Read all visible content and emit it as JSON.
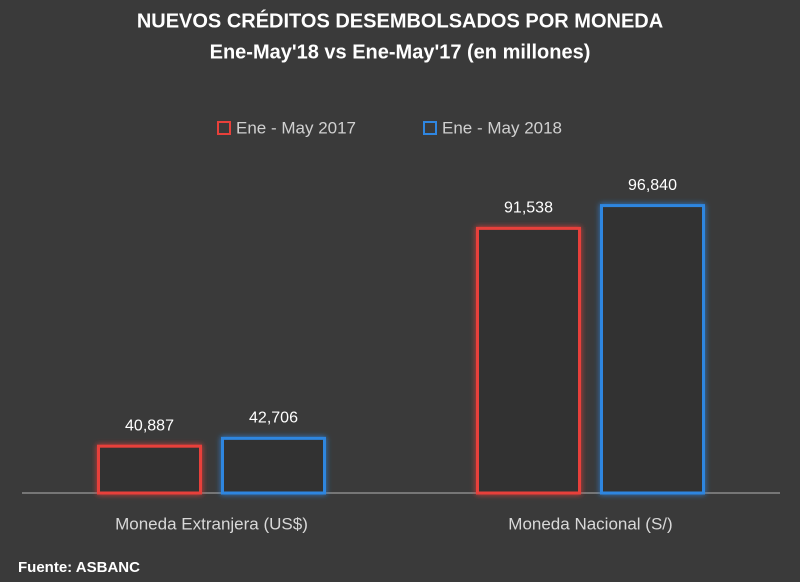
{
  "chart_data": {
    "type": "bar",
    "title": "NUEVOS CRÉDITOS DESEMBOLSADOS POR MONEDA",
    "subtitle": "Ene-May'18 vs Ene-May'17 (en millones)",
    "categories": [
      "Moneda Extranjera (US$)",
      "Moneda Nacional (S/)"
    ],
    "series": [
      {
        "name": "Ene - May 2017",
        "color": "#e8403a",
        "values": [
          40887,
          91538
        ],
        "value_labels": [
          "40,887",
          "91,538"
        ]
      },
      {
        "name": "Ene - May 2018",
        "color": "#2f86e0",
        "values": [
          42706,
          96840
        ],
        "value_labels": [
          "42,706",
          "96,840"
        ]
      }
    ],
    "ylim": [
      30000,
      100000
    ],
    "source": "Fuente: ASBANC"
  }
}
